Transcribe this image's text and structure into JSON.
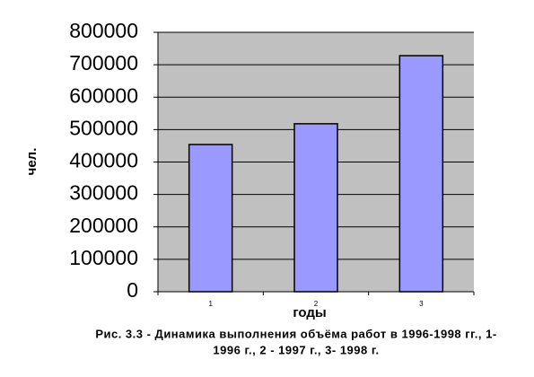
{
  "chart_data": {
    "type": "bar",
    "categories": [
      "1",
      "2",
      "3"
    ],
    "values": [
      454000,
      518000,
      728000
    ],
    "color": "#9999ff",
    "ylim": [
      0,
      800000
    ],
    "yticks": [
      0,
      100000,
      200000,
      300000,
      400000,
      500000,
      600000,
      700000,
      800000
    ],
    "grid": true,
    "y_label": "чел.",
    "x_label": "годы",
    "caption": [
      "Рис. 3.3 - Динамика выполнения объёма работ в 1996-1998 гг., 1-",
      "1996 г., 2 - 1997 г., 3- 1998 г."
    ]
  }
}
